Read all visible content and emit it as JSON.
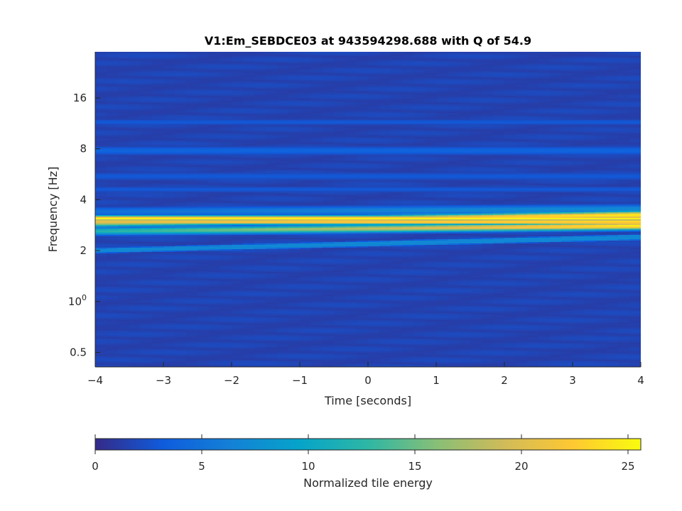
{
  "chart_data": {
    "type": "heatmap",
    "title": "V1:Em_SEBDCE03 at 943594298.688 with Q of 54.9",
    "xlabel": "Time [seconds]",
    "ylabel": "Frequency [Hz]",
    "xlim": [
      -4,
      4
    ],
    "ylim": [
      0.41,
      30
    ],
    "yscale": "log",
    "xticks": [
      -4,
      -3,
      -2,
      -1,
      0,
      1,
      2,
      3,
      4
    ],
    "xtick_labels": [
      "−4",
      "−3",
      "−2",
      "−1",
      "0",
      "1",
      "2",
      "3",
      "4"
    ],
    "yticks": [
      0.5,
      1,
      2,
      4,
      8,
      16
    ],
    "ytick_labels": [
      {
        "text": "0.5"
      },
      {
        "text": "10",
        "sup": "0"
      },
      {
        "text": "2"
      },
      {
        "text": "4"
      },
      {
        "text": "8"
      },
      {
        "text": "16"
      }
    ],
    "colorbar": {
      "label": "Normalized tile energy",
      "range": [
        0,
        25.6
      ],
      "ticks": [
        0,
        5,
        10,
        15,
        20,
        25
      ],
      "tick_labels": [
        "0",
        "5",
        "10",
        "15",
        "20",
        "25"
      ],
      "colormap": [
        "#352a87",
        "#0f5cdd",
        "#1481d6",
        "#06a4ca",
        "#2eb7a4",
        "#87bf77",
        "#d1bb59",
        "#fec832",
        "#f9fb0e"
      ]
    },
    "background_energy": 1.2,
    "bands": [
      {
        "f_start": 2.9,
        "f_end": 3.25,
        "sigma": 0.016,
        "energy_start": 17,
        "energy_end": 25,
        "energy_peak": 24
      },
      {
        "f_start": 2.6,
        "f_end": 2.8,
        "sigma": 0.016,
        "energy_start": 12,
        "energy_end": 25,
        "energy_peak": 24
      },
      {
        "f_start": 2.95,
        "f_end": 2.95,
        "sigma": 0.01,
        "energy_start": 22,
        "energy_end": 25,
        "energy_peak": 24
      },
      {
        "f_start": 3.1,
        "f_end": 3.1,
        "sigma": 0.012,
        "energy_start": 25,
        "energy_end": 25,
        "energy_peak": 23
      },
      {
        "f_start": 2.0,
        "f_end": 2.4,
        "sigma": 0.01,
        "energy_start": 10,
        "energy_end": 13,
        "energy_peak": 5
      },
      {
        "f_start": 3.4,
        "f_end": 3.5,
        "sigma": 0.02,
        "energy_start": 5,
        "energy_end": 8,
        "energy_peak": 5
      },
      {
        "f_start": 7.8,
        "f_end": 7.8,
        "sigma": 0.02,
        "energy_start": 4,
        "energy_end": 4,
        "energy_peak": 4
      },
      {
        "f_start": 11.5,
        "f_end": 11.5,
        "sigma": 0.015,
        "energy_start": 3,
        "energy_end": 3,
        "energy_peak": 3
      },
      {
        "f_start": 5.5,
        "f_end": 5.5,
        "sigma": 0.02,
        "energy_start": 3,
        "energy_end": 3,
        "energy_peak": 3
      },
      {
        "f_start": 4.6,
        "f_end": 4.6,
        "sigma": 0.015,
        "energy_start": 3,
        "energy_end": 3,
        "energy_peak": 3
      }
    ]
  }
}
